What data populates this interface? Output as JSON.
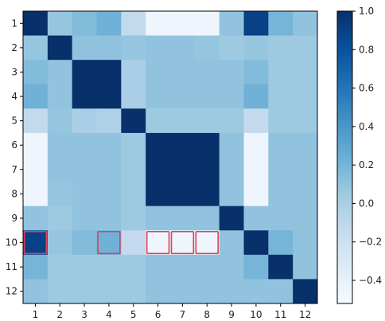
{
  "chart_data": {
    "type": "heatmap",
    "x_labels": [
      "1",
      "2",
      "3",
      "4",
      "5",
      "6",
      "7",
      "8",
      "9",
      "10",
      "11",
      "12"
    ],
    "y_labels": [
      "1",
      "2",
      "3",
      "4",
      "5",
      "6",
      "7",
      "8",
      "9",
      "10",
      "11",
      "12"
    ],
    "matrix": [
      [
        1.0,
        0.08,
        0.15,
        0.22,
        -0.12,
        -0.45,
        -0.45,
        -0.45,
        0.1,
        0.9,
        0.2,
        0.1
      ],
      [
        0.08,
        1.0,
        0.1,
        0.1,
        0.08,
        0.1,
        0.1,
        0.08,
        0.05,
        0.08,
        0.05,
        0.05
      ],
      [
        0.15,
        0.1,
        1.0,
        1.0,
        0.0,
        0.1,
        0.1,
        0.1,
        0.1,
        0.15,
        0.05,
        0.05
      ],
      [
        0.22,
        0.1,
        1.0,
        1.0,
        0.0,
        0.1,
        0.1,
        0.1,
        0.1,
        0.22,
        0.05,
        0.05
      ],
      [
        -0.12,
        0.08,
        0.0,
        -0.03,
        1.0,
        0.05,
        0.05,
        0.05,
        0.05,
        -0.12,
        0.05,
        0.05
      ],
      [
        -0.45,
        0.1,
        0.1,
        0.1,
        0.05,
        1.0,
        1.0,
        1.0,
        0.1,
        -0.45,
        0.1,
        0.1
      ],
      [
        -0.45,
        0.1,
        0.1,
        0.1,
        0.05,
        1.0,
        1.0,
        1.0,
        0.1,
        -0.45,
        0.1,
        0.1
      ],
      [
        -0.45,
        0.08,
        0.1,
        0.1,
        0.05,
        1.0,
        1.0,
        1.0,
        0.1,
        -0.45,
        0.1,
        0.1
      ],
      [
        0.1,
        0.05,
        0.1,
        0.1,
        0.05,
        0.1,
        0.1,
        0.1,
        1.0,
        0.1,
        0.1,
        0.1
      ],
      [
        0.9,
        0.08,
        0.15,
        0.22,
        -0.12,
        -0.45,
        -0.45,
        -0.45,
        0.1,
        1.0,
        0.2,
        0.1
      ],
      [
        0.2,
        0.05,
        0.05,
        0.05,
        0.05,
        0.1,
        0.1,
        0.1,
        0.1,
        0.2,
        1.0,
        0.1
      ],
      [
        0.1,
        0.05,
        0.05,
        0.05,
        0.05,
        0.1,
        0.1,
        0.1,
        0.1,
        0.1,
        0.1,
        1.0
      ]
    ],
    "highlighted_cells": [
      [
        10,
        1
      ],
      [
        10,
        4
      ],
      [
        10,
        6
      ],
      [
        10,
        7
      ],
      [
        10,
        8
      ]
    ],
    "highlight_color": "#e0405a",
    "colormap": "Blues",
    "vmin": -0.52,
    "vmax": 1.0,
    "colorbar_ticks": [
      "1.0",
      "0.8",
      "0.6",
      "0.4",
      "0.2",
      "0.0",
      "−0.2",
      "−0.4"
    ],
    "colorbar_tick_values": [
      1.0,
      0.8,
      0.6,
      0.4,
      0.2,
      0.0,
      -0.2,
      -0.4
    ],
    "title": "",
    "xlabel": "",
    "ylabel": ""
  }
}
